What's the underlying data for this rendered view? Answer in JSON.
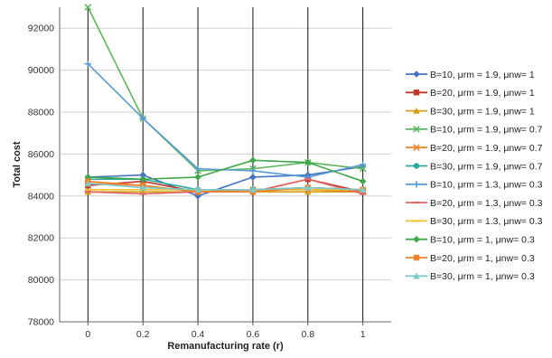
{
  "chart_data": {
    "type": "line",
    "title": "",
    "xlabel": "Remanufacturing rate (r)",
    "ylabel": "Total cost",
    "x": [
      0,
      0.2,
      0.4,
      0.6,
      0.8,
      1
    ],
    "x_tick_labels": [
      "0",
      "0.2",
      "0.4",
      "0.6",
      "0.8",
      "1"
    ],
    "ylim": [
      78000,
      93000
    ],
    "y_ticks": [
      78000,
      80000,
      82000,
      84000,
      86000,
      88000,
      90000,
      92000
    ],
    "grid": "horizontal",
    "legend_position": "right",
    "series": [
      {
        "name": "B=10, μrm = 1.9, μnw= 1",
        "color": "#4472c4",
        "marker": "diamond",
        "values": [
          84900,
          85000,
          84000,
          84900,
          85000,
          85400
        ]
      },
      {
        "name": "B=20, μrm = 1.9, μnw= 1",
        "color": "#c0392b",
        "marker": "square",
        "values": [
          84500,
          84700,
          84200,
          84200,
          84800,
          84200
        ]
      },
      {
        "name": "B=30, μrm = 1.9, μnw= 1",
        "color": "#d4a017",
        "marker": "triangle",
        "values": [
          84200,
          84200,
          84200,
          84200,
          84200,
          84200
        ]
      },
      {
        "name": "B=10, μrm = 1.9, μnw= 0.7",
        "color": "#5cb85c",
        "marker": "x",
        "values": [
          93000,
          87700,
          85200,
          85300,
          85600,
          85300
        ]
      },
      {
        "name": "B=20, μrm = 1.9, μnw= 0.7",
        "color": "#e6852e",
        "marker": "x",
        "values": [
          84600,
          84500,
          84200,
          84300,
          84300,
          84200
        ]
      },
      {
        "name": "B=30, μrm = 1.9, μnw= 0.7",
        "color": "#31a9a0",
        "marker": "circle",
        "values": [
          84800,
          84800,
          84300,
          84300,
          84400,
          84300
        ]
      },
      {
        "name": "B=10, μrm = 1.3, μnw= 0.3",
        "color": "#5b9bd5",
        "marker": "plus",
        "values": [
          90300,
          87700,
          85300,
          85200,
          84900,
          85500
        ]
      },
      {
        "name": "B=20, μrm = 1.3, μnw= 0.3",
        "color": "#e06666",
        "marker": "dash",
        "values": [
          84200,
          84100,
          84200,
          84200,
          84800,
          84100
        ]
      },
      {
        "name": "B=30, μrm = 1.3, μnw= 0.3",
        "color": "#f1c232",
        "marker": "dash",
        "values": [
          84300,
          84300,
          84300,
          84300,
          84300,
          84300
        ]
      },
      {
        "name": "B=10, μrm = 1, μnw= 0.3",
        "color": "#3fa64a",
        "marker": "diamond",
        "values": [
          84900,
          84800,
          84900,
          85700,
          85600,
          84700
        ]
      },
      {
        "name": "B=20, μrm = 1, μnw= 0.3",
        "color": "#f0812d",
        "marker": "square",
        "values": [
          84700,
          84500,
          84200,
          84200,
          84400,
          84300
        ]
      },
      {
        "name": "B=30, μrm = 1, μnw= 0.3",
        "color": "#7fc9c9",
        "marker": "triangle",
        "values": [
          84600,
          84400,
          84300,
          84300,
          84400,
          84300
        ]
      }
    ]
  }
}
